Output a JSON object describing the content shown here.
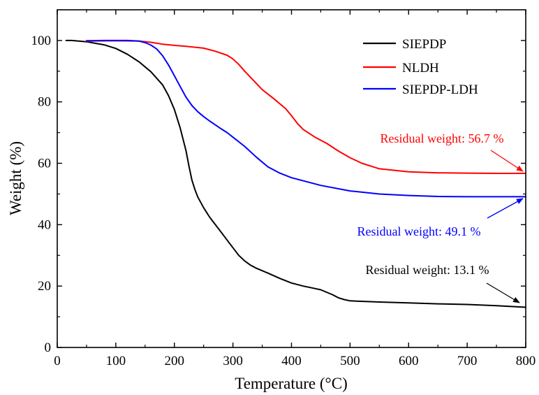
{
  "chart_data": {
    "type": "line",
    "xlabel": "Temperature (°C)",
    "ylabel": "Weight (%)",
    "xlim": [
      0,
      800
    ],
    "ylim": [
      0,
      110
    ],
    "xticks": [
      0,
      100,
      200,
      300,
      400,
      500,
      600,
      700,
      800
    ],
    "yticks": [
      0,
      20,
      40,
      60,
      80,
      100
    ],
    "grid": false,
    "legend": "top-right",
    "series": [
      {
        "name": "SIEPDP",
        "color": "#000000",
        "x": [
          15,
          25,
          50,
          80,
          100,
          120,
          140,
          160,
          180,
          190,
          200,
          210,
          220,
          225,
          230,
          235,
          240,
          250,
          260,
          270,
          280,
          290,
          300,
          310,
          320,
          330,
          340,
          350,
          360,
          380,
          400,
          420,
          440,
          450,
          460,
          470,
          480,
          490,
          500,
          550,
          600,
          650,
          700,
          750,
          800
        ],
        "y": [
          100,
          100,
          99.6,
          98.6,
          97.4,
          95.5,
          93.0,
          89.8,
          85.5,
          82.0,
          77.5,
          71.5,
          64.0,
          59.0,
          54.5,
          51.5,
          49.0,
          45.5,
          42.5,
          40.0,
          37.5,
          35.0,
          32.5,
          30.0,
          28.2,
          26.8,
          25.8,
          25.0,
          24.2,
          22.5,
          21.0,
          20.0,
          19.2,
          18.8,
          18.0,
          17.2,
          16.2,
          15.6,
          15.2,
          14.8,
          14.5,
          14.2,
          14.0,
          13.6,
          13.1
        ]
      },
      {
        "name": "NLDH",
        "color": "#ff0000",
        "x": [
          50,
          100,
          140,
          160,
          180,
          200,
          220,
          250,
          270,
          290,
          300,
          310,
          320,
          330,
          340,
          350,
          370,
          390,
          400,
          410,
          420,
          440,
          460,
          480,
          500,
          520,
          550,
          600,
          650,
          700,
          750,
          800
        ],
        "y": [
          99.8,
          99.9,
          99.8,
          99.4,
          98.8,
          98.4,
          98.1,
          97.5,
          96.5,
          95.2,
          94.0,
          92.2,
          90.0,
          88.0,
          86.0,
          84.0,
          81.0,
          77.8,
          75.5,
          73.0,
          71.0,
          68.5,
          66.5,
          64.0,
          61.8,
          60.0,
          58.2,
          57.2,
          56.9,
          56.8,
          56.7,
          56.7
        ]
      },
      {
        "name": "SIEPDP-LDH",
        "color": "#0000ff",
        "x": [
          50,
          80,
          100,
          120,
          140,
          150,
          160,
          170,
          180,
          190,
          200,
          210,
          220,
          230,
          240,
          250,
          260,
          270,
          280,
          290,
          300,
          320,
          340,
          360,
          380,
          400,
          450,
          500,
          550,
          600,
          650,
          700,
          750,
          800
        ],
        "y": [
          99.9,
          100,
          100,
          100,
          99.8,
          99.3,
          98.5,
          97.2,
          95.0,
          92.0,
          88.5,
          85.0,
          81.5,
          78.8,
          76.8,
          75.2,
          73.8,
          72.5,
          71.2,
          70.0,
          68.5,
          65.5,
          62.0,
          58.8,
          56.8,
          55.3,
          52.8,
          51.0,
          50.0,
          49.5,
          49.2,
          49.1,
          49.1,
          49.1
        ]
      }
    ],
    "annotations": [
      {
        "text": "Residual weight: 56.7 %",
        "color": "#ff0000",
        "target": [
          800,
          56.7
        ]
      },
      {
        "text": "Residual weight: 49.1 %",
        "color": "#0000ff",
        "target": [
          800,
          49.1
        ]
      },
      {
        "text": "Residual weight: 13.1 %",
        "color": "#000000",
        "target": [
          800,
          13.1
        ]
      }
    ]
  }
}
